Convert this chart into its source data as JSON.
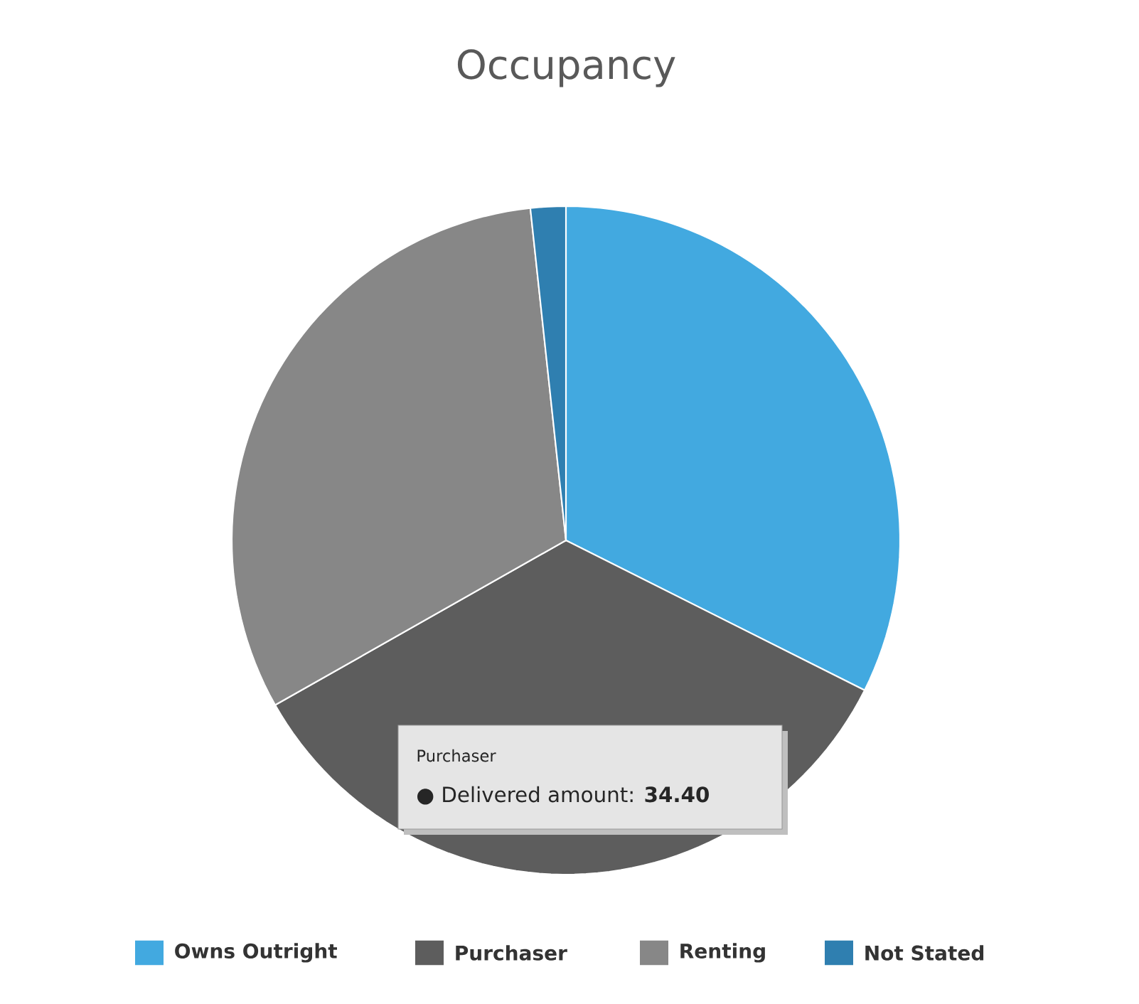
{
  "chart_data": {
    "type": "pie",
    "title": "Occupancy",
    "categories": [
      "Owns Outright",
      "Purchaser",
      "Renting",
      "Not Stated"
    ],
    "values": [
      32.4,
      34.4,
      31.5,
      1.7
    ],
    "colors": [
      "#42a9e0",
      "#5d5d5d",
      "#878787",
      "#2f7fb0"
    ],
    "legend": "bottom",
    "annotations": [
      "Purchaser",
      "● Delivered amount: **34.40**"
    ]
  }
}
